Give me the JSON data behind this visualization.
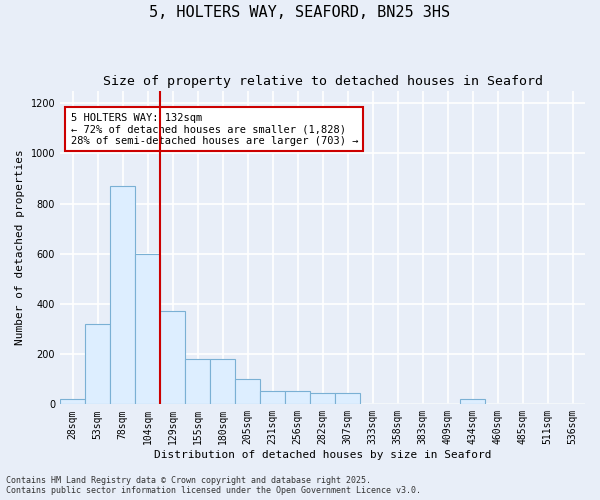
{
  "title": "5, HOLTERS WAY, SEAFORD, BN25 3HS",
  "subtitle": "Size of property relative to detached houses in Seaford",
  "xlabel": "Distribution of detached houses by size in Seaford",
  "ylabel": "Number of detached properties",
  "categories": [
    "28sqm",
    "53sqm",
    "78sqm",
    "104sqm",
    "129sqm",
    "155sqm",
    "180sqm",
    "205sqm",
    "231sqm",
    "256sqm",
    "282sqm",
    "307sqm",
    "333sqm",
    "358sqm",
    "383sqm",
    "409sqm",
    "434sqm",
    "460sqm",
    "485sqm",
    "511sqm",
    "536sqm"
  ],
  "values": [
    20,
    320,
    870,
    600,
    370,
    180,
    180,
    100,
    55,
    55,
    45,
    45,
    0,
    0,
    0,
    0,
    20,
    0,
    0,
    0,
    0
  ],
  "bar_color": "#ddeeff",
  "bar_edge_color": "#7ab0d4",
  "red_line_index": 4,
  "property_line_color": "#cc0000",
  "annotation_text": "5 HOLTERS WAY: 132sqm\n← 72% of detached houses are smaller (1,828)\n28% of semi-detached houses are larger (703) →",
  "annotation_box_color": "white",
  "annotation_box_edge_color": "#cc0000",
  "ylim": [
    0,
    1250
  ],
  "yticks": [
    0,
    200,
    400,
    600,
    800,
    1000,
    1200
  ],
  "footer_line1": "Contains HM Land Registry data © Crown copyright and database right 2025.",
  "footer_line2": "Contains public sector information licensed under the Open Government Licence v3.0.",
  "bg_color": "#e8eef8",
  "plot_bg_color": "#e8eef8",
  "grid_color": "#ffffff",
  "title_fontsize": 11,
  "subtitle_fontsize": 9.5,
  "label_fontsize": 8,
  "tick_fontsize": 7,
  "footer_fontsize": 6,
  "annot_fontsize": 7.5
}
